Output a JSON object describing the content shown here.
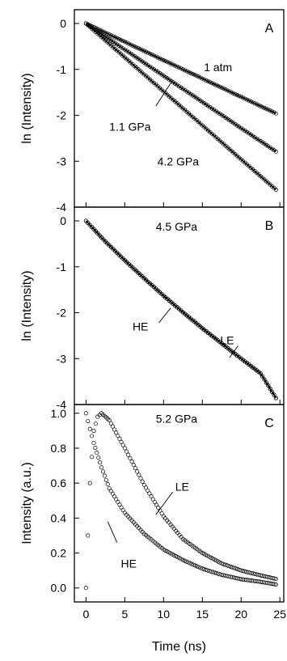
{
  "chart_data": [
    {
      "panel": "A",
      "type": "scatter",
      "ylabel": "ln (Intensity)",
      "xlim": [
        -1.5,
        25.5
      ],
      "ylim": [
        -4,
        0.3
      ],
      "yticks": [
        0,
        -1,
        -2,
        -3,
        -4
      ],
      "series": [
        {
          "name": "1 atm",
          "x": [
            0,
            5,
            10,
            15,
            20,
            24.5
          ],
          "y": [
            0,
            -0.4,
            -0.8,
            -1.2,
            -1.6,
            -1.96
          ],
          "fit": true
        },
        {
          "name": "1.1 GPa",
          "x": [
            0,
            5,
            10,
            15,
            20,
            24.5
          ],
          "y": [
            0,
            -0.57,
            -1.14,
            -1.71,
            -2.28,
            -2.79
          ],
          "fit": true
        },
        {
          "name": "4.2 GPa",
          "x": [
            0,
            5,
            10,
            15,
            20,
            24.5
          ],
          "y": [
            0,
            -0.74,
            -1.48,
            -2.22,
            -2.96,
            -3.62
          ],
          "fit": true
        }
      ],
      "annotations": [
        {
          "text": "1 atm",
          "x": 15.2,
          "y": -0.95,
          "leader": null
        },
        {
          "text": "1.1 GPa",
          "x": 3.0,
          "y": -2.25,
          "leader": [
            9.0,
            -1.8,
            11.0,
            -1.28
          ]
        },
        {
          "text": "4.2 GPa",
          "x": 9.2,
          "y": -3.0,
          "leader": null
        }
      ]
    },
    {
      "panel": "B",
      "type": "scatter",
      "ylabel": "ln (Intensity)",
      "xlim": [
        -1.5,
        25.5
      ],
      "ylim": [
        -4,
        0.3
      ],
      "yticks": [
        0,
        -1,
        -2,
        -3,
        -4
      ],
      "series": [
        {
          "name": "HE",
          "x": [
            0,
            2.5,
            5,
            7.5,
            10,
            12.5,
            15,
            17.5,
            20,
            22.5,
            24.5
          ],
          "y": [
            0,
            -0.45,
            -0.86,
            -1.25,
            -1.63,
            -1.99,
            -2.34,
            -2.67,
            -3.0,
            -3.32,
            -3.86
          ],
          "fit": true
        },
        {
          "name": "LE",
          "x": [
            0,
            2.5,
            5,
            7.5,
            10,
            12.5,
            15,
            17.5,
            20,
            22.5,
            24.5
          ],
          "y": [
            0,
            -0.45,
            -0.86,
            -1.25,
            -1.63,
            -1.99,
            -2.34,
            -2.67,
            -3.0,
            -3.32,
            -3.86
          ],
          "fit": true
        }
      ],
      "annotations": [
        {
          "text": "4.5 GPa",
          "x": 9.0,
          "y": -0.12,
          "leader": null
        },
        {
          "text": "HE",
          "x": 6.0,
          "y": -2.3,
          "leader": [
            9.4,
            -2.22,
            10.9,
            -1.9
          ]
        },
        {
          "text": "LE",
          "x": 17.3,
          "y": -2.6,
          "leader": [
            19.6,
            -2.72,
            18.5,
            -2.98
          ]
        }
      ]
    },
    {
      "panel": "C",
      "type": "scatter",
      "ylabel": "Intensity (a.u.)",
      "xlabel": "Time (ns)",
      "xlim": [
        -1.5,
        25.5
      ],
      "ylim": [
        -0.08,
        1.05
      ],
      "xticks": [
        0,
        5,
        10,
        15,
        20,
        25
      ],
      "yticks": [
        0.0,
        0.2,
        0.4,
        0.6,
        0.8,
        1.0
      ],
      "series": [
        {
          "name": "HE",
          "x": [
            0,
            0.5,
            1,
            2,
            3,
            5,
            7.5,
            10,
            12.5,
            15,
            17.5,
            20,
            22.5,
            24.5
          ],
          "y": [
            1.0,
            0.91,
            0.83,
            0.69,
            0.57,
            0.43,
            0.31,
            0.22,
            0.16,
            0.11,
            0.075,
            0.05,
            0.035,
            0.02
          ],
          "fit": false
        },
        {
          "name": "LE",
          "x": [
            0,
            0.5,
            1,
            1.5,
            2,
            3,
            5,
            7.5,
            10,
            12.5,
            15,
            17.5,
            20,
            22.5,
            24.5
          ],
          "y": [
            0.0,
            0.6,
            0.9,
            0.98,
            1.0,
            0.96,
            0.8,
            0.59,
            0.41,
            0.28,
            0.2,
            0.14,
            0.1,
            0.072,
            0.052
          ],
          "fit": false
        }
      ],
      "annotations": [
        {
          "text": "5.2 GPa",
          "x": 9.0,
          "y": 0.97,
          "leader": null
        },
        {
          "text": "LE",
          "x": 11.5,
          "y": 0.58,
          "leader": [
            11.2,
            0.55,
            9.0,
            0.42
          ]
        },
        {
          "text": "HE",
          "x": 4.5,
          "y": 0.14,
          "leader": [
            4.0,
            0.26,
            2.8,
            0.38
          ]
        }
      ]
    }
  ],
  "panel_letters": [
    "A",
    "B",
    "C"
  ],
  "x_tick_labels": [
    "0",
    "5",
    "10",
    "15",
    "20",
    "25"
  ]
}
